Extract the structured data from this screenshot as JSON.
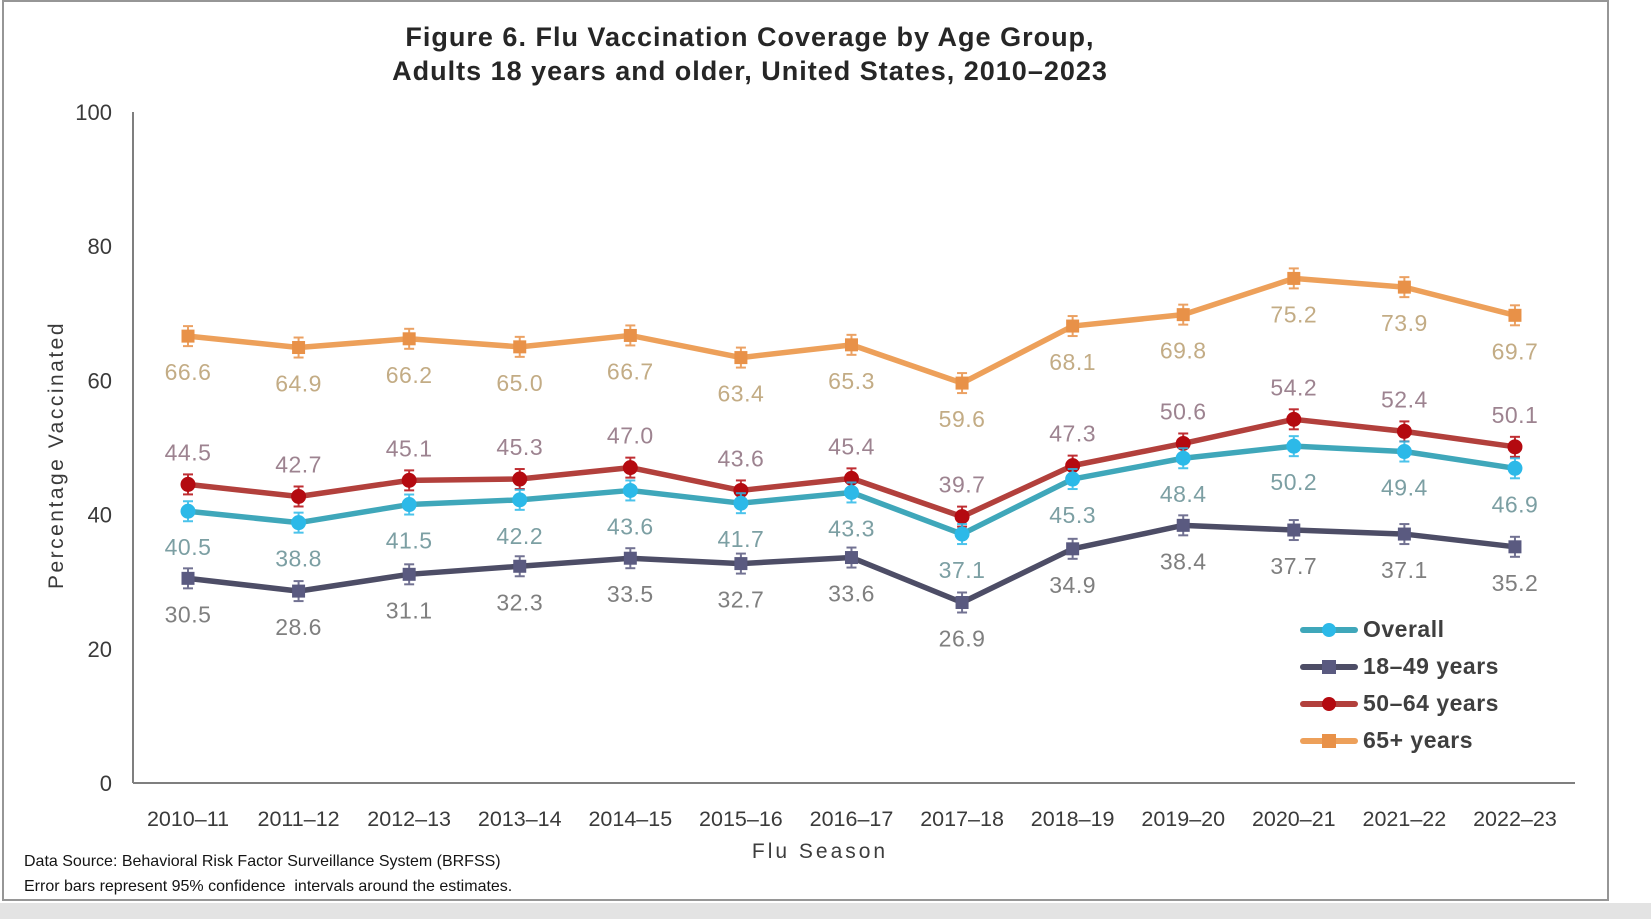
{
  "figure": {
    "title_line1": "Figure 6. Flu Vaccination Coverage by Age Group,",
    "title_line2": "Adults 18 years and older, United States, 2010–2023"
  },
  "footer": {
    "line1": "Data Source: Behavioral Risk Factor Surveillance System (BRFSS)",
    "line2": "Error bars represent 95% confidence  intervals around the estimates."
  },
  "chart_data": {
    "type": "line",
    "title": "Figure 6. Flu Vaccination Coverage by Age Group, Adults 18 years and older, United States, 2010–2023",
    "xlabel": "Flu Season",
    "ylabel": "Percentage Vaccinated",
    "ylim": [
      0,
      100
    ],
    "yticks": [
      0,
      20,
      40,
      60,
      80,
      100
    ],
    "grid": false,
    "legend_position": "lower right",
    "error_bars": "95% confidence intervals",
    "categories": [
      "2010–11",
      "2011–12",
      "2012–13",
      "2013–14",
      "2014–15",
      "2015–16",
      "2016–17",
      "2017–18",
      "2018–19",
      "2019–20",
      "2020–21",
      "2021–22",
      "2022–23"
    ],
    "series": [
      {
        "name": "Overall",
        "values": [
          40.5,
          38.8,
          41.5,
          42.2,
          43.6,
          41.7,
          43.3,
          37.1,
          45.3,
          48.4,
          50.2,
          49.4,
          46.9
        ],
        "labels": [
          "40.5",
          "38.8",
          "41.5",
          "42.2",
          "43.6",
          "41.7",
          "43.3",
          "37.1",
          "45.3",
          "48.4",
          "50.2",
          "49.4",
          "46.9"
        ],
        "line_color": "#3FA7BA",
        "marker_color": "#2CB9E8",
        "label_color": "#7C9FA3",
        "marker": "circle",
        "label_side": "below"
      },
      {
        "name": "18–49 years",
        "values": [
          30.5,
          28.6,
          31.1,
          32.3,
          33.5,
          32.7,
          33.6,
          26.9,
          34.9,
          38.4,
          37.7,
          37.1,
          35.2
        ],
        "labels": [
          "30.5",
          "28.6",
          "31.1",
          "32.3",
          "33.5",
          "32.7",
          "33.6",
          "26.9",
          "34.9",
          "38.4",
          "37.7",
          "37.1",
          "35.2"
        ],
        "line_color": "#4D4D66",
        "marker_color": "#5A5A80",
        "label_color": "#7F7F7F",
        "marker": "square",
        "label_side": "below"
      },
      {
        "name": "50–64 years",
        "values": [
          44.5,
          42.7,
          45.1,
          45.3,
          47.0,
          43.6,
          45.4,
          39.7,
          47.3,
          50.6,
          54.2,
          52.4,
          50.1
        ],
        "labels": [
          "44.5",
          "42.7",
          "45.1",
          "45.3",
          "47.0",
          "43.6",
          "45.4",
          "39.7",
          "47.3",
          "50.6",
          "54.2",
          "52.4",
          "50.1"
        ],
        "line_color": "#B2403C",
        "marker_color": "#B40A10",
        "label_color": "#9D8390",
        "marker": "circle",
        "label_side": "above"
      },
      {
        "name": "65+ years",
        "values": [
          66.6,
          64.9,
          66.2,
          65.0,
          66.7,
          63.4,
          65.3,
          59.6,
          68.1,
          69.8,
          75.2,
          73.9,
          69.7
        ],
        "labels": [
          "66.6",
          "64.9",
          "66.2",
          "65.0",
          "66.7",
          "63.4",
          "65.3",
          "59.6",
          "68.1",
          "69.8",
          "75.2",
          "73.9",
          "69.7"
        ],
        "line_color": "#EDA05A",
        "marker_color": "#E89148",
        "label_color": "#C3AC85",
        "marker": "square",
        "label_side": "below"
      }
    ],
    "colors": {
      "axis": "#7f7f7f",
      "tick_text": "#3a3a3a",
      "title_text": "#262626"
    }
  }
}
